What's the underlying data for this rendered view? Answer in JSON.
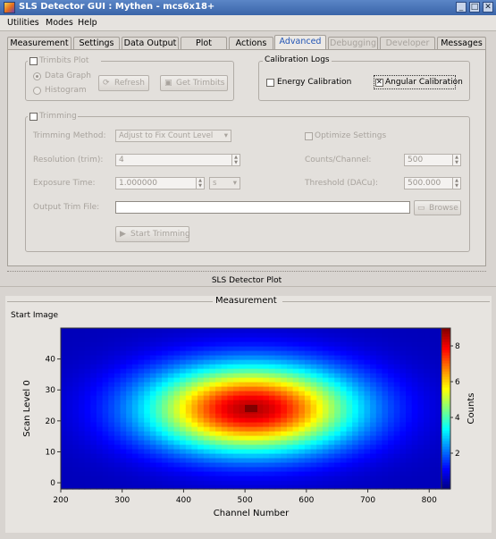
{
  "window": {
    "title": "SLS Detector GUI : Mythen - mcs6x18+"
  },
  "menus": [
    "Utilities",
    "Modes",
    "Help"
  ],
  "tabs": [
    {
      "label": "Measurement",
      "state": "normal"
    },
    {
      "label": "Settings",
      "state": "normal"
    },
    {
      "label": "Data Output",
      "state": "normal"
    },
    {
      "label": "Plot",
      "state": "normal"
    },
    {
      "label": "Actions",
      "state": "normal"
    },
    {
      "label": "Advanced",
      "state": "active"
    },
    {
      "label": "Debugging",
      "state": "disabled"
    },
    {
      "label": "Developer",
      "state": "disabled"
    },
    {
      "label": "Messages",
      "state": "normal"
    }
  ],
  "trimbits_plot": {
    "title": "Trimbits Plot",
    "checked": false,
    "radio_data_graph": "Data Graph",
    "radio_histogram": "Histogram",
    "refresh_label": "Refresh",
    "get_trimbits_label": "Get Trimbits"
  },
  "calibration_logs": {
    "title": "Calibration Logs",
    "energy_label": "Energy Calibration",
    "energy_checked": false,
    "angular_label": "Angular Calibration",
    "angular_checked": true
  },
  "trimming": {
    "title": "Trimming",
    "checked": false,
    "method_label": "Trimming Method:",
    "method_value": "Adjust to Fix Count Level",
    "optimize_label": "Optimize Settings",
    "resolution_label": "Resolution (trim):",
    "resolution_value": "4",
    "counts_label": "Counts/Channel:",
    "counts_value": "500",
    "exposure_label": "Exposure Time:",
    "exposure_value": "1.000000",
    "exposure_unit": "s",
    "threshold_label": "Threshold (DACu):",
    "threshold_value": "500.000",
    "output_label": "Output Trim File:",
    "output_value": "",
    "browse_label": "Browse",
    "start_label": "Start Trimming"
  },
  "plot_area": {
    "splitter_label": "SLS Detector Plot",
    "section_title": "Measurement",
    "start_image_label": "Start Image",
    "colorbar_label": "Counts"
  },
  "chart_data": {
    "type": "heatmap",
    "title": "",
    "xlabel": "Channel Number",
    "ylabel": "Scan Level 0",
    "xlim": [
      200,
      820
    ],
    "ylim": [
      -2,
      50
    ],
    "xticks": [
      200,
      300,
      400,
      500,
      600,
      700,
      800
    ],
    "yticks": [
      0,
      10,
      20,
      30,
      40
    ],
    "colorbar": {
      "label": "Counts",
      "ticks": [
        2,
        4,
        6,
        8
      ],
      "range": [
        0,
        9
      ]
    },
    "function": "elliptical gaussian peak centered near channel 510, level 24; edge value ~1, center value ~9",
    "peak": {
      "x": 510,
      "y": 24,
      "value": 9
    }
  }
}
